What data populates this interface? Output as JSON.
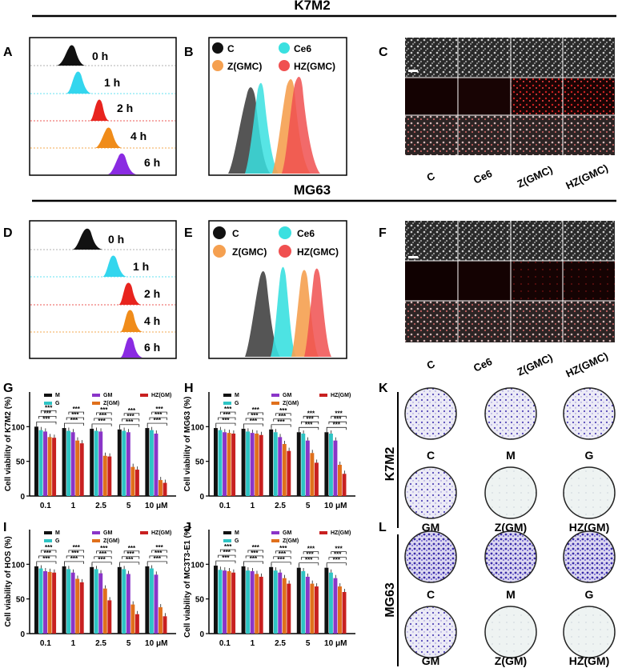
{
  "section_titles": {
    "top": "K7M2",
    "middle": "MG63"
  },
  "panel_letters": [
    "A",
    "B",
    "C",
    "D",
    "E",
    "F",
    "G",
    "H",
    "I",
    "J",
    "K",
    "L"
  ],
  "time_labels": [
    "0 h",
    "1 h",
    "2 h",
    "4 h",
    "6 h"
  ],
  "legend_flow": [
    "C",
    "Ce6",
    "Z(GMC)",
    "HZ(GMC)"
  ],
  "micro_columns": [
    "C",
    "Ce6",
    "Z(GMC)",
    "HZ(GMC)"
  ],
  "colony_labels": [
    "C",
    "M",
    "G",
    "GM",
    "Z(GM)",
    "HZ(GM)"
  ],
  "colony_rows": [
    "K7M2",
    "MG63"
  ],
  "legend_bar": [
    "M",
    "G",
    "GM",
    "Z(GM)",
    "HZ(GM)"
  ],
  "colors": {
    "t0": "#111111",
    "t1": "#33d6ee",
    "t2": "#e8241e",
    "t4": "#f08c1a",
    "t6": "#8a2be2",
    "fc": "#555555",
    "fce6": "#3ae0e0",
    "fz": "#f5a050",
    "fhz": "#f05050",
    "bar_M": "#111111",
    "bar_G": "#2ec4c4",
    "bar_GM": "#8a35c8",
    "bar_Z": "#e0701c",
    "bar_HZ": "#c82020"
  },
  "sig": "***",
  "chart_data": [
    {
      "panel": "G",
      "type": "bar",
      "title": "",
      "xlabel": "",
      "ylabel": "Cell viability of K7M2 (%)",
      "categories": [
        "0.1",
        "1",
        "2.5",
        "5",
        "10 μM"
      ],
      "ylim": [
        0,
        150
      ],
      "yticks": [
        0,
        50,
        100
      ],
      "series": [
        {
          "name": "M",
          "values": [
            100,
            98,
            97,
            96,
            98
          ]
        },
        {
          "name": "G",
          "values": [
            95,
            94,
            94,
            94,
            95
          ]
        },
        {
          "name": "GM",
          "values": [
            93,
            92,
            93,
            92,
            90
          ]
        },
        {
          "name": "Z(GM)",
          "values": [
            85,
            80,
            58,
            42,
            23
          ]
        },
        {
          "name": "HZ(GM)",
          "values": [
            84,
            76,
            57,
            38,
            19
          ]
        }
      ]
    },
    {
      "panel": "H",
      "type": "bar",
      "title": "",
      "xlabel": "",
      "ylabel": "Cell viability of MG63 (%)",
      "categories": [
        "0.1",
        "1",
        "2.5",
        "5",
        "10 μM"
      ],
      "ylim": [
        0,
        150
      ],
      "yticks": [
        0,
        50,
        100
      ],
      "series": [
        {
          "name": "M",
          "values": [
            98,
            97,
            96,
            92,
            92
          ]
        },
        {
          "name": "G",
          "values": [
            95,
            93,
            92,
            90,
            90
          ]
        },
        {
          "name": "GM",
          "values": [
            92,
            91,
            85,
            80,
            80
          ]
        },
        {
          "name": "Z(GM)",
          "values": [
            91,
            90,
            75,
            62,
            45
          ]
        },
        {
          "name": "HZ(GM)",
          "values": [
            90,
            88,
            65,
            48,
            32
          ]
        }
      ]
    },
    {
      "panel": "I",
      "type": "bar",
      "title": "",
      "xlabel": "",
      "ylabel": "Cell viability of HOS (%)",
      "categories": [
        "0.1",
        "1",
        "2.5",
        "5",
        "10 μM"
      ],
      "ylim": [
        0,
        150
      ],
      "yticks": [
        0,
        50,
        100
      ],
      "series": [
        {
          "name": "M",
          "values": [
            97,
            97,
            96,
            96,
            97
          ]
        },
        {
          "name": "G",
          "values": [
            94,
            93,
            93,
            93,
            94
          ]
        },
        {
          "name": "GM",
          "values": [
            90,
            88,
            87,
            86,
            85
          ]
        },
        {
          "name": "Z(GM)",
          "values": [
            89,
            79,
            65,
            42,
            38
          ]
        },
        {
          "name": "HZ(GM)",
          "values": [
            88,
            74,
            48,
            28,
            25
          ]
        }
      ]
    },
    {
      "panel": "J",
      "type": "bar",
      "title": "",
      "xlabel": "",
      "ylabel": "Cell viability of MC3T3-E1 (%)",
      "categories": [
        "0.1",
        "1",
        "2.5",
        "5",
        "10 μM"
      ],
      "ylim": [
        0,
        150
      ],
      "yticks": [
        0,
        50,
        100
      ],
      "series": [
        {
          "name": "M",
          "values": [
            98,
            97,
            96,
            95,
            95
          ]
        },
        {
          "name": "G",
          "values": [
            92,
            91,
            91,
            90,
            88
          ]
        },
        {
          "name": "GM",
          "values": [
            91,
            90,
            88,
            82,
            80
          ]
        },
        {
          "name": "Z(GM)",
          "values": [
            90,
            86,
            80,
            72,
            68
          ]
        },
        {
          "name": "HZ(GM)",
          "values": [
            88,
            82,
            72,
            68,
            60
          ]
        }
      ]
    }
  ]
}
